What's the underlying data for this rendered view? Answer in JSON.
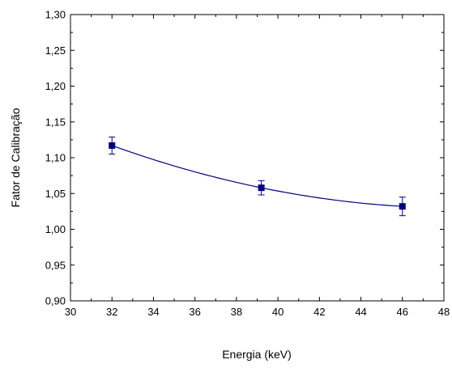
{
  "chart_data": {
    "type": "scatter",
    "title": "",
    "xlabel": "Energia (keV)",
    "ylabel": "Fator de Calibração",
    "xlim": [
      30,
      48
    ],
    "ylim": [
      0.9,
      1.3
    ],
    "xticks": [
      "30",
      "32",
      "34",
      "36",
      "38",
      "40",
      "42",
      "44",
      "46",
      "48"
    ],
    "yticks": [
      "0,90",
      "0,95",
      "1,00",
      "1,05",
      "1,10",
      "1,15",
      "1,20",
      "1,25",
      "1,30"
    ],
    "x_minor_step": 1,
    "y_minor_step": 0.025,
    "grid": false,
    "legend": "none",
    "series": [
      {
        "x": [
          32,
          39.2,
          46
        ],
        "y": [
          1.117,
          1.058,
          1.032
        ],
        "error": [
          0.012,
          0.01,
          0.013
        ],
        "marker": "square",
        "color": "#000080",
        "fit_line": true
      }
    ]
  }
}
